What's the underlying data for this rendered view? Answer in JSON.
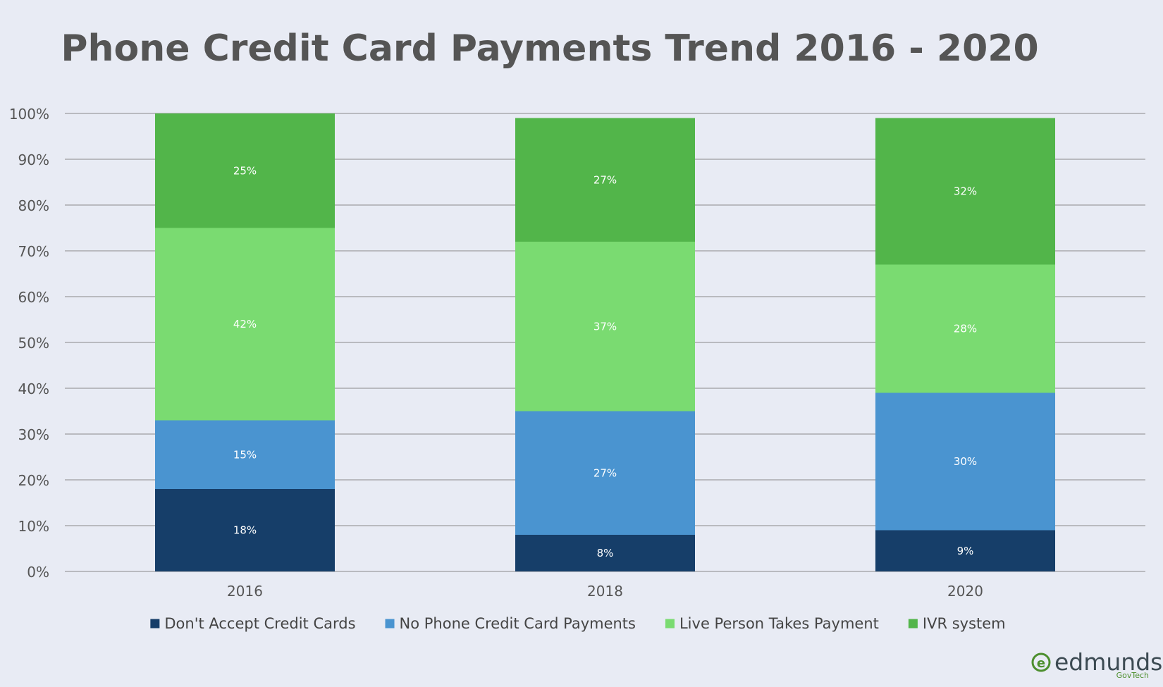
{
  "chart_data": {
    "type": "bar",
    "stacked": true,
    "title": "Phone Credit Card Payments Trend 2016 - 2020",
    "categories": [
      "2016",
      "2018",
      "2020"
    ],
    "series": [
      {
        "name": "Don't Accept Credit Cards",
        "values": [
          18,
          8,
          9
        ],
        "labels": [
          "18%",
          "8%",
          "9%"
        ],
        "color": "#163e69"
      },
      {
        "name": "No Phone Credit Card Payments",
        "values": [
          15,
          27,
          30
        ],
        "labels": [
          "15%",
          "27%",
          "30%"
        ],
        "color": "#4a94d0"
      },
      {
        "name": "Live Person Takes Payment",
        "values": [
          42,
          37,
          28
        ],
        "labels": [
          "42%",
          "37%",
          "28%"
        ],
        "color": "#7adb71"
      },
      {
        "name": "IVR system",
        "values": [
          25,
          27,
          32
        ],
        "labels": [
          "25%",
          "27%",
          "32%"
        ],
        "color": "#52b54a"
      }
    ],
    "ylim": [
      0,
      100
    ],
    "yticks": [
      "0%",
      "10%",
      "20%",
      "30%",
      "40%",
      "50%",
      "60%",
      "70%",
      "80%",
      "90%",
      "100%"
    ],
    "grid": true,
    "legend": "bottom"
  },
  "branding": {
    "logo_text": "edmunds",
    "logo_subtext": "GovTech",
    "logo_color": "#4d8f2e"
  },
  "colors": {
    "background": "#e8ebf4",
    "gridline": "#8a8a8a",
    "text": "#555555"
  }
}
